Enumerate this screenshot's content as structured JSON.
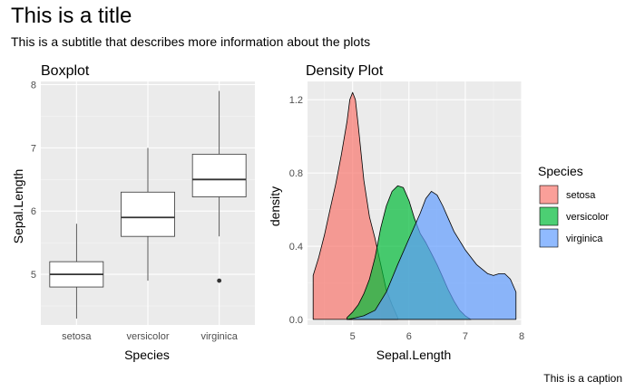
{
  "page": {
    "title": "This is a title",
    "subtitle": "This is a subtitle that describes more information about the plots",
    "caption": "This is a caption"
  },
  "colors": {
    "panel_bg": "#ebebeb",
    "grid_major": "#ffffff",
    "setosa": "#F8766D",
    "versicolor": "#00BA38",
    "virginica": "#619CFF"
  },
  "chart_data": [
    {
      "type": "boxplot",
      "title": "Boxplot",
      "xlabel": "Species",
      "ylabel": "Sepal.Length",
      "categories": [
        "setosa",
        "versicolor",
        "virginica"
      ],
      "ylim": [
        4.2,
        8.05
      ],
      "yticks": [
        5,
        6,
        7,
        8
      ],
      "boxes": [
        {
          "name": "setosa",
          "min": 4.3,
          "q1": 4.8,
          "median": 5.0,
          "q3": 5.2,
          "max": 5.8,
          "outliers": []
        },
        {
          "name": "versicolor",
          "min": 4.9,
          "q1": 5.6,
          "median": 5.9,
          "q3": 6.3,
          "max": 7.0,
          "outliers": []
        },
        {
          "name": "virginica",
          "min": 5.6,
          "q1": 6.225,
          "median": 6.5,
          "q3": 6.9,
          "max": 7.9,
          "outliers": [
            4.9
          ]
        }
      ]
    },
    {
      "type": "density",
      "title": "Density Plot",
      "xlabel": "Sepal.Length",
      "ylabel": "density",
      "xlim": [
        4.2,
        8.0
      ],
      "ylim": [
        -0.03,
        1.3
      ],
      "xticks": [
        5,
        6,
        7,
        8
      ],
      "yticks": [
        0.0,
        0.4,
        0.8,
        1.2
      ],
      "ytick_labels": [
        "0.0",
        "0.4",
        "0.8",
        "1.2"
      ],
      "legend": {
        "title": "Species",
        "position": "right"
      },
      "series": [
        {
          "name": "setosa",
          "x": [
            4.3,
            4.4,
            4.5,
            4.6,
            4.7,
            4.8,
            4.9,
            4.95,
            5.0,
            5.05,
            5.1,
            5.2,
            5.3,
            5.4,
            5.5,
            5.6,
            5.7,
            5.8
          ],
          "y": [
            0.24,
            0.34,
            0.46,
            0.6,
            0.74,
            0.9,
            1.08,
            1.2,
            1.24,
            1.2,
            1.06,
            0.76,
            0.56,
            0.44,
            0.3,
            0.16,
            0.08,
            0.01
          ]
        },
        {
          "name": "versicolor",
          "x": [
            4.9,
            5.0,
            5.1,
            5.2,
            5.3,
            5.4,
            5.5,
            5.6,
            5.7,
            5.8,
            5.9,
            6.0,
            6.1,
            6.2,
            6.3,
            6.4,
            6.5,
            6.6,
            6.7,
            6.8,
            6.9,
            7.0,
            7.1
          ],
          "y": [
            0.01,
            0.04,
            0.08,
            0.14,
            0.22,
            0.34,
            0.5,
            0.62,
            0.7,
            0.73,
            0.72,
            0.65,
            0.55,
            0.47,
            0.42,
            0.36,
            0.3,
            0.23,
            0.16,
            0.1,
            0.05,
            0.02,
            0.0
          ]
        },
        {
          "name": "virginica",
          "x": [
            4.9,
            5.0,
            5.2,
            5.4,
            5.6,
            5.8,
            6.0,
            6.2,
            6.3,
            6.4,
            6.5,
            6.6,
            6.7,
            6.8,
            7.0,
            7.2,
            7.4,
            7.5,
            7.6,
            7.7,
            7.8,
            7.9
          ],
          "y": [
            0.0,
            0.005,
            0.02,
            0.05,
            0.15,
            0.3,
            0.44,
            0.58,
            0.66,
            0.7,
            0.68,
            0.62,
            0.55,
            0.48,
            0.38,
            0.3,
            0.25,
            0.24,
            0.25,
            0.25,
            0.22,
            0.15
          ]
        }
      ]
    }
  ]
}
